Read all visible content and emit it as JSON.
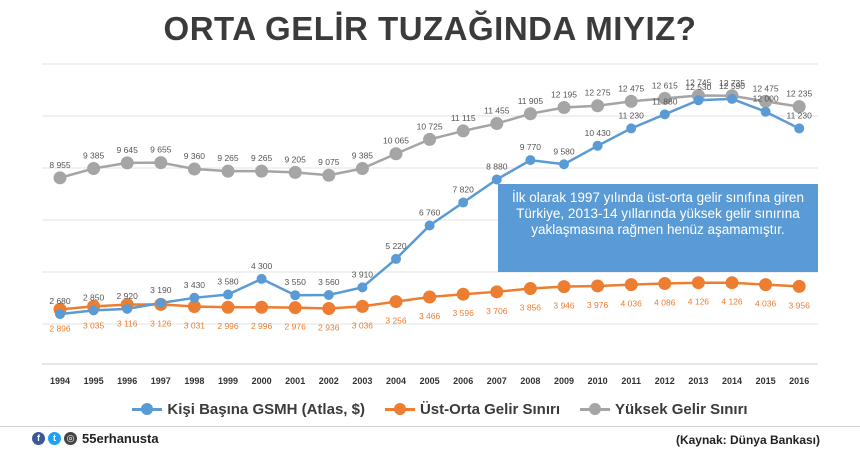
{
  "title": "ORTA GELİR TUZAĞINDA MIYIZ?",
  "annotation": "İlk olarak 1997 yılında üst-orta gelir sınıfına giren Türkiye, 2013-14 yıllarında yüksek gelir sınırına yaklaşmasına rağmen henüz aşamamıştır.",
  "legend": [
    {
      "label": "Kişi Başına GSMH (Atlas, $)",
      "color": "#5b9bd5"
    },
    {
      "label": "Üst-Orta Gelir Sınırı",
      "color": "#ed7d31"
    },
    {
      "label": "Yüksek Gelir Sınırı",
      "color": "#a5a5a5"
    }
  ],
  "footer": {
    "handle": "55erhanusta",
    "source": "(Kaynak: Dünya Bankası)",
    "icons": [
      "facebook-icon",
      "twitter-icon",
      "instagram-icon"
    ]
  },
  "chart_data": {
    "type": "line",
    "title": "ORTA GELİR TUZAĞINDA MIYIZ?",
    "x": [
      "1994",
      "1995",
      "1996",
      "1997",
      "1998",
      "1999",
      "2000",
      "2001",
      "2002",
      "2003",
      "2004",
      "2005",
      "2006",
      "2007",
      "2008",
      "2009",
      "2010",
      "2011",
      "2012",
      "2013",
      "2014",
      "2015",
      "2016"
    ],
    "series": [
      {
        "name": "Kişi Başına GSMH (Atlas, $)",
        "color": "#5b9bd5",
        "labels": "above",
        "values": [
          2680,
          2850,
          2920,
          3190,
          3430,
          3580,
          4300,
          3550,
          3560,
          3910,
          5220,
          6760,
          7820,
          8880,
          9770,
          9580,
          10430,
          11230,
          11880,
          12530,
          12590,
          12000,
          11230
        ]
      },
      {
        "name": "Üst-Orta Gelir Sınırı",
        "color": "#ed7d31",
        "labels": "below",
        "values": [
          2896,
          3035,
          3116,
          3126,
          3031,
          2996,
          2996,
          2976,
          2936,
          3036,
          3256,
          3466,
          3596,
          3706,
          3856,
          3946,
          3976,
          4036,
          4086,
          4126,
          4126,
          4036,
          3956
        ]
      },
      {
        "name": "Yüksek Gelir Sınırı",
        "color": "#a5a5a5",
        "labels": "above",
        "values": [
          8955,
          9385,
          9645,
          9655,
          9360,
          9265,
          9265,
          9205,
          9075,
          9385,
          10065,
          10725,
          11115,
          11455,
          11905,
          12195,
          12275,
          12475,
          12615,
          12745,
          12735,
          12475,
          12235
        ]
      }
    ],
    "grid": true,
    "legend_position": "bottom"
  }
}
